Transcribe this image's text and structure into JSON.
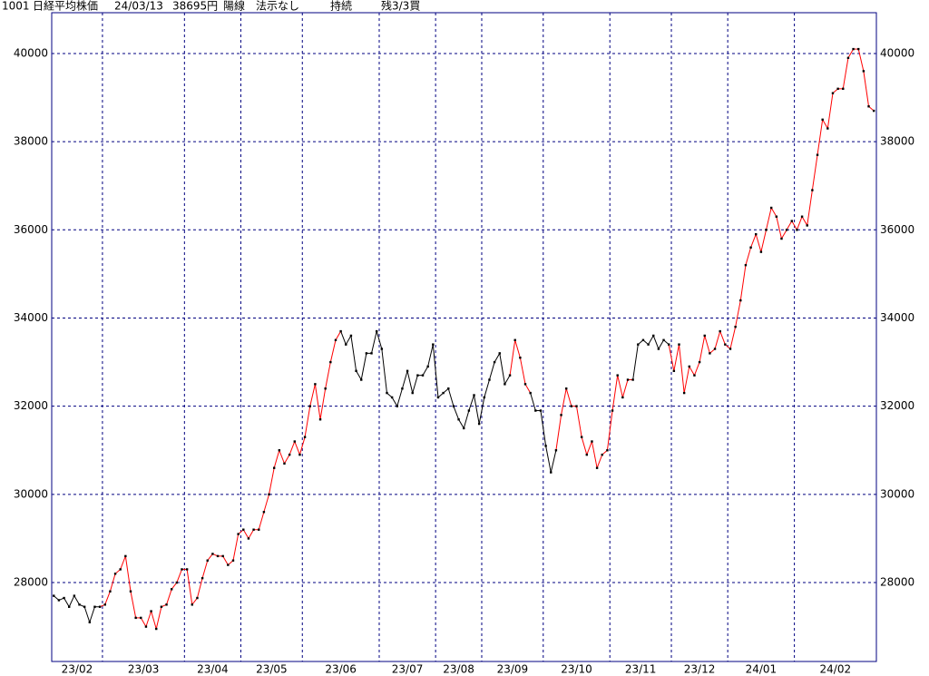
{
  "chart_data": {
    "type": "line",
    "header": {
      "code": "1001",
      "name": "日経平均株価",
      "date": "24/03/13",
      "price": "38695円",
      "candle": "陽線",
      "signal": "法示なし",
      "status": "持続",
      "position": "残3/3買"
    },
    "values": [
      27700,
      27600,
      27650,
      27450,
      27700,
      27500,
      27450,
      27100,
      27450,
      27450,
      27500,
      27800,
      28200,
      28300,
      28600,
      27800,
      27200,
      27200,
      27000,
      27350,
      26950,
      27450,
      27500,
      27850,
      28000,
      28300,
      28300,
      27500,
      27650,
      28100,
      28500,
      28650,
      28600,
      28600,
      28400,
      28500,
      29100,
      29200,
      29000,
      29200,
      29200,
      29600,
      30000,
      30600,
      31000,
      30700,
      30900,
      31200,
      30900,
      31300,
      32000,
      32500,
      31700,
      32400,
      33000,
      33500,
      33700,
      33400,
      33600,
      32800,
      32600,
      33200,
      33200,
      33700,
      33300,
      32300,
      32200,
      32000,
      32400,
      32800,
      32300,
      32700,
      32700,
      32900,
      33400,
      32200,
      32300,
      32400,
      32000,
      31700,
      31500,
      31900,
      32250,
      31600,
      32200,
      32600,
      33000,
      33200,
      32500,
      32700,
      33500,
      33100,
      32500,
      32300,
      31900,
      31900,
      31100,
      30500,
      31000,
      31800,
      32400,
      32000,
      32000,
      31300,
      30900,
      31200,
      30600,
      30900,
      31000,
      31900,
      32700,
      32200,
      32600,
      32600,
      33400,
      33500,
      33400,
      33600,
      33300,
      33500,
      33400,
      32800,
      33400,
      32300,
      32900,
      32700,
      33000,
      33600,
      33200,
      33300,
      33700,
      33400,
      33300,
      33800,
      34400,
      35200,
      35600,
      35900,
      35500,
      36000,
      36500,
      36300,
      35800,
      36000,
      36200,
      36000,
      36300,
      36100,
      36900,
      37700,
      38500,
      38300,
      39100,
      39200,
      39200,
      39900,
      40100,
      40100,
      39600,
      38800,
      38700
    ],
    "colors": [
      "black",
      "black",
      "black",
      "black",
      "black",
      "black",
      "black",
      "black",
      "black",
      "black",
      "red",
      "red",
      "red",
      "red",
      "red",
      "red",
      "red",
      "red",
      "red",
      "red",
      "red",
      "red",
      "red",
      "red",
      "red",
      "red",
      "red",
      "red",
      "red",
      "red",
      "red",
      "red",
      "red",
      "red",
      "red",
      "red",
      "red",
      "red",
      "red",
      "red",
      "red",
      "red",
      "red",
      "red",
      "red",
      "red",
      "red",
      "red",
      "red",
      "red",
      "red",
      "red",
      "red",
      "red",
      "red",
      "red",
      "red",
      "black",
      "black",
      "black",
      "black",
      "black",
      "black",
      "black",
      "black",
      "black",
      "black",
      "black",
      "black",
      "black",
      "black",
      "black",
      "black",
      "black",
      "black",
      "black",
      "black",
      "black",
      "black",
      "black",
      "black",
      "black",
      "black",
      "black",
      "black",
      "black",
      "black",
      "black",
      "black",
      "black",
      "red",
      "red",
      "red",
      "red",
      "black",
      "black",
      "black",
      "black",
      "black",
      "red",
      "red",
      "red",
      "red",
      "red",
      "red",
      "red",
      "red",
      "red",
      "red",
      "red",
      "red",
      "red",
      "red",
      "red",
      "black",
      "black",
      "black",
      "black",
      "black",
      "black",
      "black",
      "red",
      "red",
      "red",
      "red",
      "red",
      "red",
      "red",
      "red",
      "red",
      "red",
      "red",
      "red",
      "red",
      "red",
      "red",
      "red",
      "red",
      "red",
      "red",
      "red",
      "red",
      "red",
      "red",
      "red",
      "red",
      "red",
      "red",
      "red",
      "red",
      "red",
      "red",
      "red",
      "red",
      "red",
      "red",
      "red",
      "red",
      "red",
      "red",
      "red"
    ],
    "marker_color": "#000000",
    "xlim": [
      -0.4,
      160.5
    ],
    "xticks": [
      {
        "value": 0,
        "label": "23/02"
      },
      {
        "value": 10,
        "label": "23/03"
      },
      {
        "value": 26,
        "label": "23/04"
      },
      {
        "value": 37,
        "label": "23/05"
      },
      {
        "value": 49,
        "label": "23/06"
      },
      {
        "value": 64,
        "label": "23/07"
      },
      {
        "value": 75,
        "label": "23/08"
      },
      {
        "value": 84,
        "label": "23/09"
      },
      {
        "value": 96,
        "label": "23/10"
      },
      {
        "value": 109,
        "label": "23/11"
      },
      {
        "value": 121,
        "label": "23/12"
      },
      {
        "value": 132,
        "label": "24/01"
      },
      {
        "value": 145,
        "label": "24/02"
      }
    ],
    "ylim": [
      26210,
      40925
    ],
    "yticks": [
      28000,
      30000,
      32000,
      34000,
      36000,
      38000,
      40000
    ],
    "grid": true
  }
}
